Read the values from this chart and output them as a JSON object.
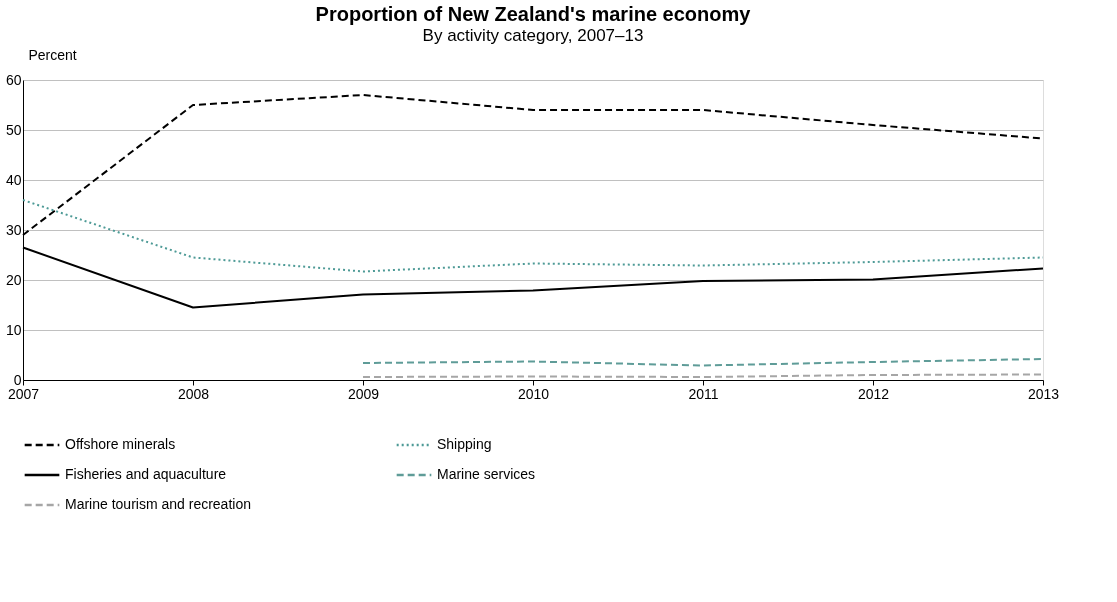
{
  "chart_data": {
    "type": "line",
    "title": "Proportion of New Zealand's marine economy",
    "subtitle": "By activity category, 2007–13",
    "ylabel": "Percent",
    "x": [
      2007,
      2008,
      2009,
      2010,
      2011,
      2012,
      2013
    ],
    "xlim": [
      2007,
      2013
    ],
    "xticks": [
      2007,
      2008,
      2009,
      2010,
      2011,
      2012,
      2013
    ],
    "ylim": [
      0,
      60
    ],
    "yticks": [
      0,
      10,
      20,
      30,
      40,
      50,
      60
    ],
    "grid": "y",
    "legend": "bottom",
    "marker": "none",
    "series": [
      {
        "name": "Offshore minerals",
        "color": "#000000",
        "line_style": "dashed",
        "values": [
          29,
          55,
          57,
          54,
          54,
          51,
          48.3
        ]
      },
      {
        "name": "Shipping",
        "color": "#4d9a96",
        "line_style": "dotted",
        "values": [
          36,
          24.5,
          21.7,
          23.3,
          22.9,
          23.6,
          24.5
        ]
      },
      {
        "name": "Fisheries and aquaculture",
        "color": "#000000",
        "line_style": "solid",
        "values": [
          26.5,
          14.5,
          17.1,
          17.9,
          19.8,
          20.1,
          22.3
        ]
      },
      {
        "name": "Marine services",
        "color": "#5f9c98",
        "line_style": "dashed",
        "values": [
          null,
          null,
          3.4,
          3.7,
          2.9,
          3.6,
          4.2
        ]
      },
      {
        "name": "Marine tourism and recreation",
        "color": "#a6a6a6",
        "line_style": "dashed",
        "values": [
          null,
          null,
          0.6,
          0.7,
          0.6,
          1.0,
          1.1
        ]
      }
    ]
  }
}
